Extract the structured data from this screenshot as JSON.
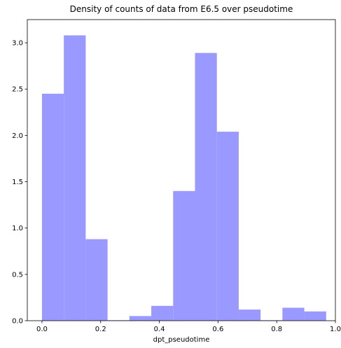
{
  "chart_data": {
    "type": "bar",
    "title": "Density of counts of data from E6.5 over pseudotime",
    "xlabel": "dpt_pseudotime",
    "ylabel": "",
    "xlim": [
      -0.05,
      1.0
    ],
    "ylim": [
      0,
      3.25
    ],
    "xticks": [
      0.0,
      0.2,
      0.4,
      0.6,
      0.8,
      1.0
    ],
    "xtick_labels": [
      "0.0",
      "0.2",
      "0.4",
      "0.6",
      "0.8",
      "1.0"
    ],
    "yticks": [
      0.0,
      0.5,
      1.0,
      1.5,
      2.0,
      2.5,
      3.0
    ],
    "ytick_labels": [
      "0.0",
      "0.5",
      "1.0",
      "1.5",
      "2.0",
      "2.5",
      "3.0"
    ],
    "grid": false,
    "bar_color": "#9999ff",
    "bin_edges": [
      0.0,
      0.0745,
      0.149,
      0.2235,
      0.298,
      0.3725,
      0.447,
      0.5215,
      0.596,
      0.6705,
      0.745,
      0.8195,
      0.894,
      0.9685
    ],
    "values": [
      2.45,
      3.08,
      0.88,
      0.005,
      0.05,
      0.16,
      1.4,
      2.89,
      2.04,
      0.12,
      0.005,
      0.14,
      0.1
    ]
  }
}
